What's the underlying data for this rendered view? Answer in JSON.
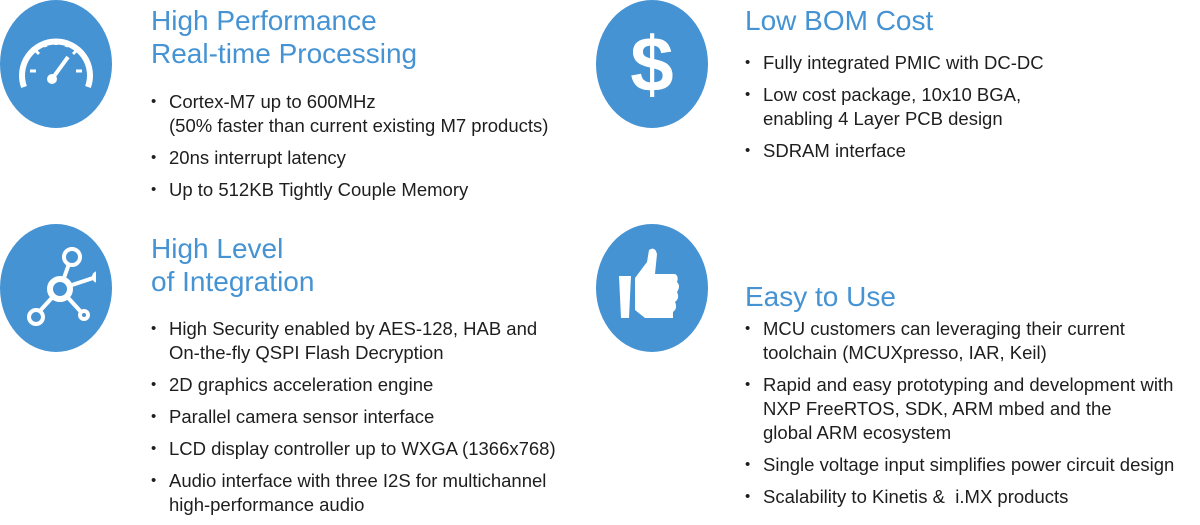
{
  "colors": {
    "accent": "#4593d3",
    "text": "#1e1e1e"
  },
  "sections": [
    {
      "icon": "speedometer-icon",
      "title_lines": [
        "High Performance",
        "Real-time Processing"
      ],
      "bullets": [
        "Cortex-M7 up to 600MHz\n(50% faster than current existing M7 products)",
        "20ns interrupt latency",
        "Up to 512KB Tightly Couple Memory"
      ]
    },
    {
      "icon": "dollar-icon",
      "title_lines": [
        "Low BOM Cost"
      ],
      "bullets": [
        "Fully integrated PMIC with DC-DC",
        "Low cost package, 10x10 BGA,\nenabling 4 Layer PCB design",
        "SDRAM interface"
      ]
    },
    {
      "icon": "network-nodes-icon",
      "title_lines": [
        "High Level",
        "of Integration"
      ],
      "bullets": [
        "High Security enabled by AES-128, HAB and\nOn-the-fly QSPI Flash Decryption",
        "2D graphics acceleration engine",
        "Parallel camera sensor interface",
        "LCD display controller up to WXGA (1366x768)",
        "Audio interface with three I2S for multichannel\nhigh-performance audio"
      ]
    },
    {
      "icon": "thumbs-up-icon",
      "title_lines": [
        "Easy to Use"
      ],
      "bullets": [
        "MCU customers can leveraging their current\ntoolchain (MCUXpresso, IAR, Keil)",
        "Rapid and easy prototyping and development with\nNXP FreeRTOS, SDK, ARM mbed and the\nglobal ARM ecosystem",
        "Single voltage input simplifies power circuit design",
        "Scalability to Kinetis &  i.MX products"
      ]
    }
  ]
}
